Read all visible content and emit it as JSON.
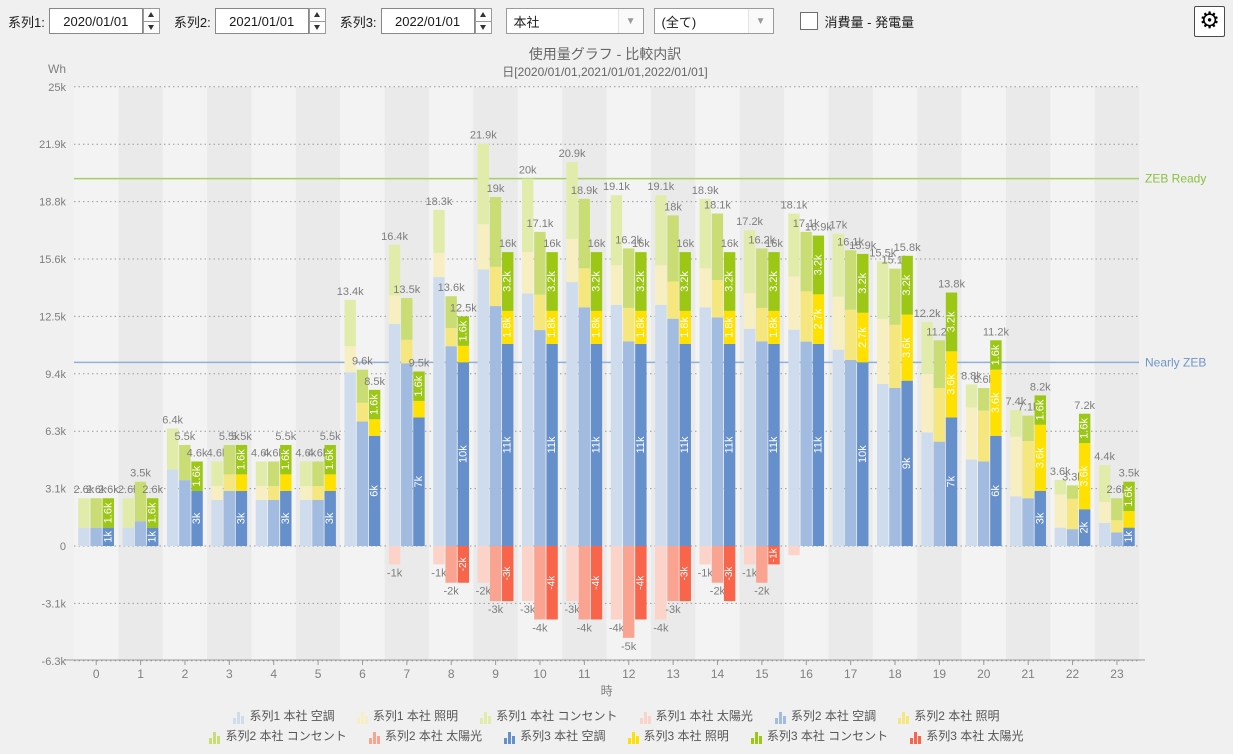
{
  "toolbar": {
    "series_inputs": [
      {
        "label": "系列1:",
        "value": "2020/01/01"
      },
      {
        "label": "系列2:",
        "value": "2021/01/01"
      },
      {
        "label": "系列3:",
        "value": "2022/01/01"
      }
    ],
    "site_select": "本社",
    "filter_select": "(全て)",
    "checkbox_label": "消費量 - 発電量",
    "checkbox_checked": false
  },
  "icons": {
    "dropdown_arrow": "▼",
    "gear": "⚙"
  },
  "chart": {
    "title": "使用量グラフ - 比較内訳",
    "subtitle": "日[2020/01/01,2021/01/01,2022/01/01]",
    "y_unit": "Wh",
    "x_label": "時"
  },
  "chart_data": {
    "type": "bar",
    "stacked": true,
    "x": [
      0,
      1,
      2,
      3,
      4,
      5,
      6,
      7,
      8,
      9,
      10,
      11,
      12,
      13,
      14,
      15,
      16,
      17,
      18,
      19,
      20,
      21,
      22,
      23
    ],
    "y_ticks": [
      {
        "value": 25,
        "label": "25k"
      },
      {
        "value": 21.875,
        "label": "21.9k"
      },
      {
        "value": 18.75,
        "label": "18.8k"
      },
      {
        "value": 15.625,
        "label": "15.6k"
      },
      {
        "value": 12.5,
        "label": "12.5k"
      },
      {
        "value": 9.375,
        "label": "9.4k"
      },
      {
        "value": 6.25,
        "label": "6.3k"
      },
      {
        "value": 3.125,
        "label": "3.1k"
      },
      {
        "value": 0,
        "label": "0"
      },
      {
        "value": -3.125,
        "label": "-3.1k"
      },
      {
        "value": -6.25,
        "label": "-6.3k"
      }
    ],
    "reference_lines": [
      {
        "label": "ZEB Ready",
        "value": 20,
        "line_color": "#a6ce64",
        "text_color": "#8cbf44"
      },
      {
        "label": "Nearly ZEB",
        "value": 10,
        "line_color": "#8fb0d9",
        "text_color": "#6e96c8"
      }
    ],
    "series": [
      {
        "name": "系列1",
        "date": "2020/01/01",
        "totals": [
          2.6,
          2.6,
          6.4,
          4.6,
          4.6,
          4.6,
          13.4,
          16.4,
          18.3,
          21.9,
          20,
          20.9,
          19.1,
          19.1,
          18.9,
          17.2,
          18.1,
          17,
          15.5,
          12.2,
          8.8,
          7.4,
          3.6,
          4.4
        ],
        "solar": [
          0,
          0,
          0,
          0,
          0,
          0,
          0,
          -1,
          -1,
          -2,
          -3,
          -3,
          -4,
          -4,
          -1,
          -1,
          -0.5,
          0,
          0,
          0,
          0,
          0,
          0,
          0
        ],
        "colors": {
          "aircon": "#cfdcee",
          "lighting": "#f7efc2",
          "outlet": "#e1ecab",
          "solar": "#fbd3c9"
        }
      },
      {
        "name": "系列2",
        "date": "2021/01/01",
        "totals": [
          2.6,
          3.5,
          5.5,
          5.5,
          4.6,
          4.6,
          9.6,
          13.5,
          13.6,
          19,
          17.1,
          18.9,
          16.2,
          18,
          18.1,
          16.2,
          17.1,
          16.1,
          15.1,
          11.2,
          8.6,
          7.1,
          3.3,
          2.6
        ],
        "solar": [
          0,
          0,
          0,
          0,
          0,
          0,
          0,
          0,
          -2,
          -3,
          -4,
          -4,
          -5,
          -3,
          -2,
          -2,
          0,
          0,
          0,
          0,
          0,
          0,
          0,
          0
        ],
        "colors": {
          "aircon": "#a2bbe0",
          "lighting": "#f5e67e",
          "outlet": "#cadd75",
          "solar": "#f9a390"
        }
      },
      {
        "name": "系列3",
        "date": "2022/01/01",
        "totals": [
          2.6,
          2.6,
          4.6,
          5.5,
          5.5,
          5.5,
          8.5,
          9.5,
          12.5,
          16,
          16,
          16,
          16,
          16,
          16,
          16,
          16.9,
          15.9,
          15.8,
          13.8,
          11.2,
          8.2,
          7.2,
          3.5
        ],
        "aircon": [
          1,
          1,
          3,
          3,
          3,
          3,
          6,
          7,
          10,
          11,
          11,
          11,
          11,
          11,
          11,
          11,
          11,
          10,
          9,
          7,
          6,
          3,
          2,
          1
        ],
        "lighting": [
          0,
          0,
          0,
          0.9,
          0.9,
          0.9,
          0.9,
          0.9,
          0.9,
          1.8,
          1.8,
          1.8,
          1.8,
          1.8,
          1.8,
          1.8,
          2.7,
          2.7,
          3.6,
          3.6,
          3.6,
          3.6,
          3.6,
          0.9
        ],
        "outlet": [
          1.6,
          1.6,
          1.6,
          1.6,
          1.6,
          1.6,
          1.6,
          1.6,
          1.6,
          3.2,
          3.2,
          3.2,
          3.2,
          3.2,
          3.2,
          3.2,
          3.2,
          3.2,
          3.2,
          3.2,
          1.6,
          1.6,
          1.6,
          1.6
        ],
        "solar": [
          0,
          0,
          0,
          0,
          0,
          0,
          0,
          0,
          -2,
          -3,
          -4,
          -4,
          -4,
          -3,
          -3,
          -1,
          0,
          0,
          0,
          0,
          0,
          0,
          0,
          0
        ],
        "colors": {
          "aircon": "#6590cb",
          "lighting": "#fee100",
          "outlet": "#9cc715",
          "solar": "#f8654a"
        }
      }
    ],
    "legend": [
      {
        "label": "系列1 本社 空調",
        "color": "#cfdcee"
      },
      {
        "label": "系列1 本社 照明",
        "color": "#f7efc2"
      },
      {
        "label": "系列1 本社 コンセント",
        "color": "#e1ecab"
      },
      {
        "label": "系列1 本社 太陽光",
        "color": "#fbd3c9"
      },
      {
        "label": "系列2 本社 空調",
        "color": "#a2bbe0"
      },
      {
        "label": "系列2 本社 照明",
        "color": "#f5e67e"
      },
      {
        "label": "系列2 本社 コンセント",
        "color": "#cadd75"
      },
      {
        "label": "系列2 本社 太陽光",
        "color": "#f9a390"
      },
      {
        "label": "系列3 本社 空調",
        "color": "#6590cb"
      },
      {
        "label": "系列3 本社 照明",
        "color": "#fee100"
      },
      {
        "label": "系列3 本社 コンセント",
        "color": "#9cc715"
      },
      {
        "label": "系列3 本社 太陽光",
        "color": "#f8654a"
      }
    ]
  }
}
